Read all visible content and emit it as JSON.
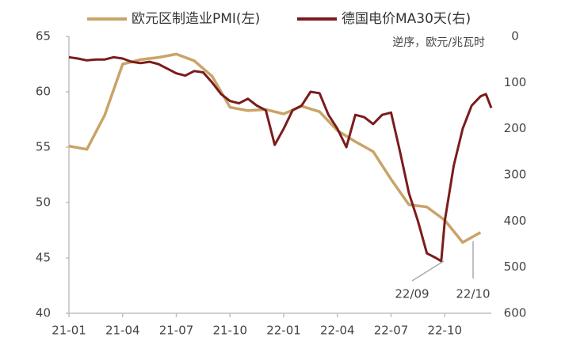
{
  "chart_data": {
    "type": "line",
    "xlim": [
      0,
      23.6
    ],
    "xticks": [
      {
        "value": 0,
        "label": "21-01"
      },
      {
        "value": 3,
        "label": "21-04"
      },
      {
        "value": 6,
        "label": "21-07"
      },
      {
        "value": 9,
        "label": "21-10"
      },
      {
        "value": 12,
        "label": "22-01"
      },
      {
        "value": 15,
        "label": "22-04"
      },
      {
        "value": 18,
        "label": "22-07"
      },
      {
        "value": 21,
        "label": "22-10"
      }
    ],
    "ylim": [
      40,
      65
    ],
    "yticks": [
      40,
      45,
      50,
      55,
      60,
      65
    ],
    "y2lim": [
      0,
      600
    ],
    "y2ticks": [
      0,
      100,
      200,
      300,
      400,
      500,
      600
    ],
    "y2_inverted": true,
    "y2label": "逆序，欧元/兆瓦时",
    "series": [
      {
        "name": "欧元区制造业PMI(左)",
        "color": "#c9a468",
        "x": [
          0,
          1,
          2,
          3,
          4,
          5,
          6,
          7,
          8,
          9,
          10,
          11,
          12,
          13,
          14,
          15,
          16,
          17,
          18,
          19,
          20,
          21,
          22,
          23
        ],
        "values": [
          55.1,
          54.8,
          57.9,
          62.5,
          62.9,
          63.1,
          63.4,
          62.8,
          61.4,
          58.6,
          58.3,
          58.4,
          58.0,
          58.7,
          58.2,
          56.5,
          55.5,
          54.6,
          52.1,
          49.8,
          49.6,
          48.4,
          46.4,
          47.3
        ]
      },
      {
        "name": "德国电价MA30天(右)",
        "color": "#7b1c1c",
        "axis": "y2",
        "x": [
          0,
          0.5,
          1,
          1.5,
          2,
          2.5,
          3,
          3.5,
          4,
          4.5,
          5,
          5.5,
          6,
          6.5,
          7,
          7.5,
          8,
          8.5,
          9,
          9.5,
          10,
          10.5,
          11,
          11.5,
          12,
          12.5,
          13,
          13.5,
          14,
          14.5,
          15,
          15.5,
          16,
          16.5,
          17,
          17.5,
          18,
          18.5,
          19,
          19.5,
          20,
          20.5,
          20.8,
          21,
          21.5,
          22,
          22.5,
          23,
          23.3,
          23.6
        ],
        "values": [
          45,
          48,
          52,
          50,
          50,
          45,
          48,
          55,
          58,
          55,
          60,
          70,
          80,
          85,
          75,
          78,
          100,
          125,
          140,
          145,
          135,
          150,
          160,
          235,
          200,
          160,
          150,
          120,
          123,
          170,
          200,
          240,
          170,
          175,
          190,
          170,
          165,
          250,
          340,
          400,
          470,
          480,
          487,
          400,
          280,
          200,
          150,
          130,
          125,
          155
        ]
      }
    ],
    "legend": "top",
    "annotations": [
      "22/09",
      "22/10"
    ]
  }
}
